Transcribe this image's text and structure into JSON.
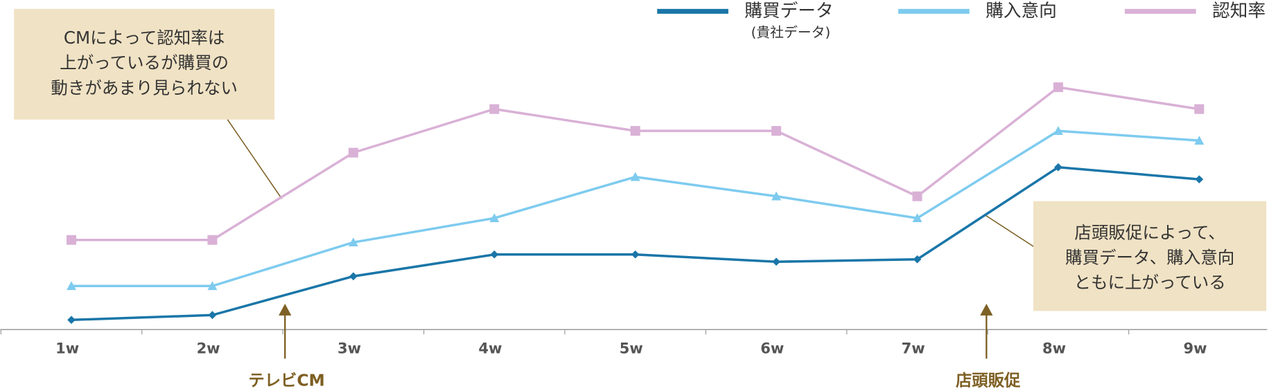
{
  "chart_data": {
    "type": "line",
    "categories": [
      "1w",
      "2w",
      "3w",
      "4w",
      "5w",
      "6w",
      "7w",
      "8w",
      "9w"
    ],
    "ylim": [
      0,
      136
    ],
    "series": [
      {
        "name": "購買データ",
        "name_note": "(貴社データ)",
        "color": "#1a76a8",
        "marker": "diamond",
        "values": [
          4,
          6,
          22,
          31,
          31,
          28,
          29,
          67,
          62
        ]
      },
      {
        "name": "購入意向",
        "color": "#7ecbef",
        "marker": "triangle",
        "values": [
          18,
          18,
          36,
          46,
          63,
          55,
          46,
          82,
          78
        ]
      },
      {
        "name": "認知率",
        "color": "#d9b1d6",
        "marker": "square",
        "values": [
          37,
          37,
          73,
          91,
          82,
          82,
          55,
          100,
          91
        ]
      }
    ],
    "annotations": [
      {
        "lines": [
          "CMによって認知率は",
          "上がっているが購買の",
          "動きがあまり見られない"
        ]
      },
      {
        "lines": [
          "店頭販促によって、",
          "購買データ、購入意向",
          "ともに上がっている"
        ]
      }
    ],
    "events": [
      "テレビCM",
      "店頭販促"
    ]
  }
}
